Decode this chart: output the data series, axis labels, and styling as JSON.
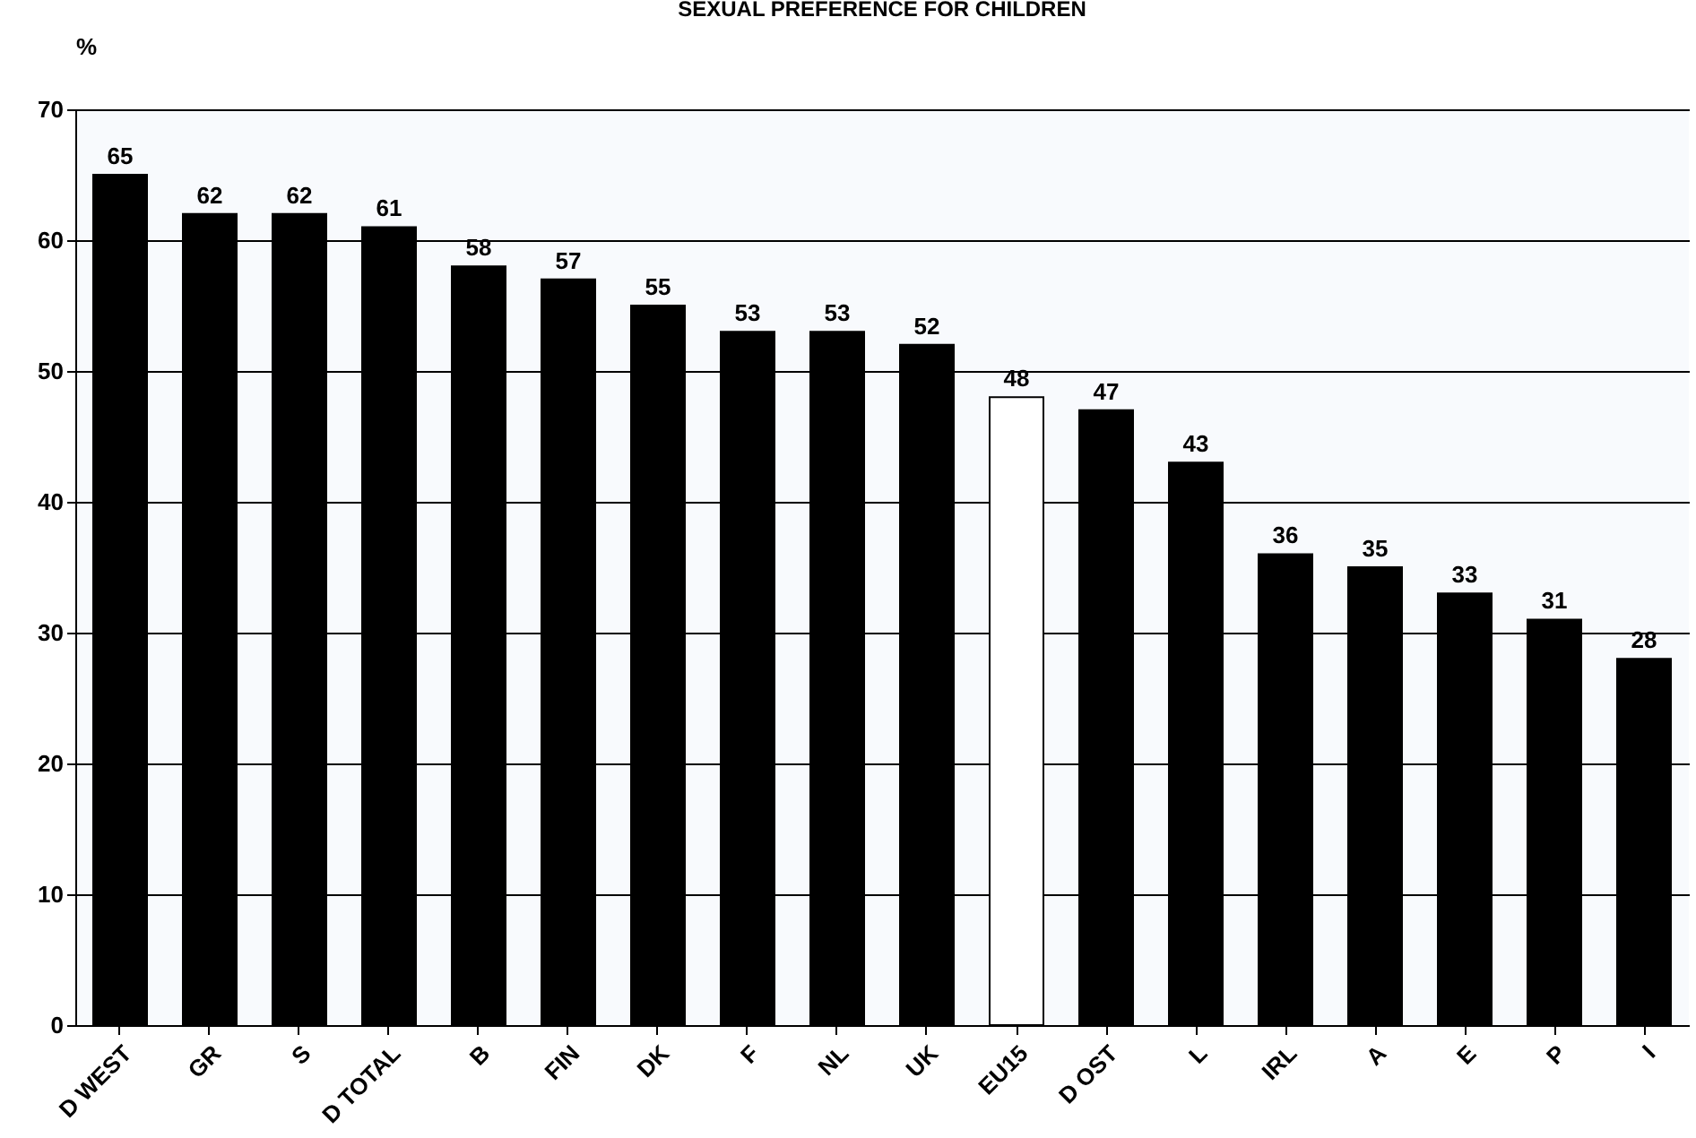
{
  "chart_data": {
    "type": "bar",
    "title": "SEXUAL PREFERENCE FOR CHILDREN",
    "ylabel": "%",
    "categories": [
      "D WEST",
      "GR",
      "S",
      "D TOTAL",
      "B",
      "FIN",
      "DK",
      "F",
      "NL",
      "UK",
      "EU15",
      "D OST",
      "L",
      "IRL",
      "A",
      "E",
      "P",
      "I"
    ],
    "values": [
      65,
      62,
      62,
      61,
      58,
      57,
      55,
      53,
      53,
      52,
      48,
      47,
      43,
      36,
      35,
      33,
      31,
      28
    ],
    "colors": [
      "#000000",
      "#000000",
      "#000000",
      "#000000",
      "#000000",
      "#000000",
      "#000000",
      "#000000",
      "#000000",
      "#000000",
      "#ffffff",
      "#000000",
      "#000000",
      "#000000",
      "#000000",
      "#000000",
      "#000000",
      "#000000"
    ],
    "ylim": [
      0,
      70
    ],
    "yticks": [
      0,
      10,
      20,
      30,
      40,
      50,
      60,
      70
    ],
    "grid": "y",
    "data_labels": true
  }
}
